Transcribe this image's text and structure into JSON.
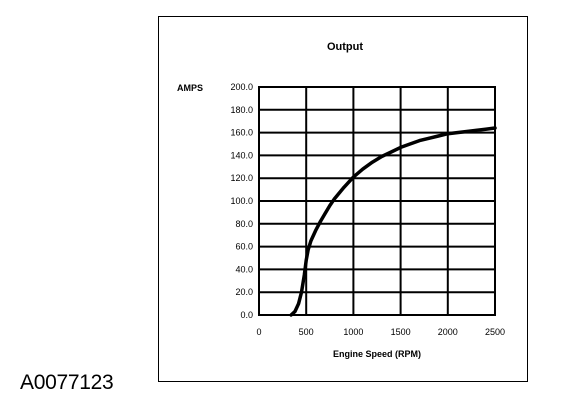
{
  "figure_id": "A0077123",
  "chart_data": {
    "type": "line",
    "title": "Output",
    "xlabel": "Engine Speed (RPM)",
    "ylabel": "AMPS",
    "xlim": [
      0,
      2500
    ],
    "ylim": [
      0,
      200
    ],
    "grid": true,
    "x_ticks": [
      "0",
      "500",
      "1000",
      "1500",
      "2000",
      "2500"
    ],
    "y_ticks": [
      "0.0",
      "20.0",
      "40.0",
      "60.0",
      "80.0",
      "100.0",
      "120.0",
      "140.0",
      "160.0",
      "180.0",
      "200.0"
    ],
    "series": [
      {
        "x": [
          340,
          380,
          420,
          450,
          480,
          500,
          520,
          550,
          600,
          650,
          700,
          750,
          800,
          900,
          1000,
          1100,
          1200,
          1300,
          1400,
          1500,
          1600,
          1700,
          1800,
          1900,
          2000,
          2100,
          2200,
          2300,
          2400,
          2500
        ],
        "y": [
          0,
          3,
          10,
          20,
          35,
          48,
          57,
          65,
          74,
          82,
          89,
          96,
          102,
          112,
          121,
          128,
          134,
          139,
          143,
          147,
          150,
          153,
          155,
          157,
          159,
          160,
          161,
          162,
          163,
          164
        ]
      }
    ],
    "colors": {
      "line": "#000000",
      "grid": "#000000",
      "background": "#ffffff"
    }
  }
}
